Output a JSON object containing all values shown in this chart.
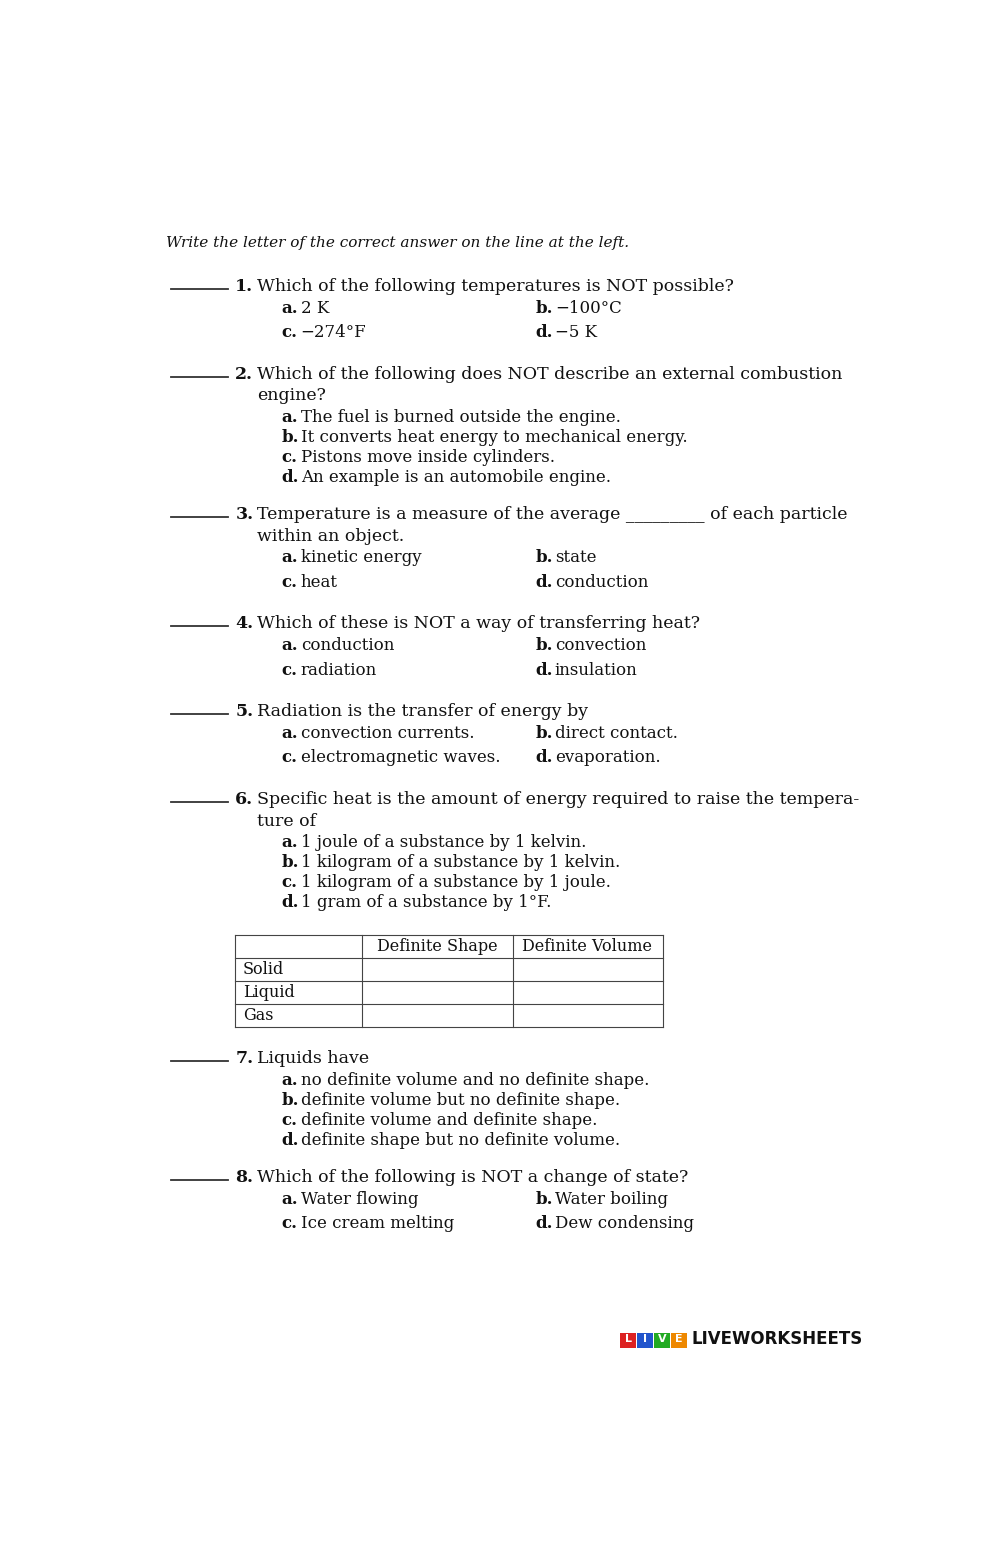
{
  "bg_color": "#ffffff",
  "text_color": "#111111",
  "instruction": "Write the letter of the correct answer on the line at the left.",
  "questions": [
    {
      "num": "1.",
      "q": "Which of the following temperatures is NOT possible?",
      "options_2col": [
        [
          "a.",
          "2 K",
          "b.",
          "−100°C"
        ],
        [
          "c.",
          "−274°F",
          "d.",
          "−5 K"
        ]
      ]
    },
    {
      "num": "2.",
      "q": "Which of the following does NOT describe an external combustion\nengine?",
      "options_1col": [
        [
          "a.",
          "The fuel is burned outside the engine."
        ],
        [
          "b.",
          "It converts heat energy to mechanical energy."
        ],
        [
          "c.",
          "Pistons move inside cylinders."
        ],
        [
          "d.",
          "An example is an automobile engine."
        ]
      ]
    },
    {
      "num": "3.",
      "q": "Temperature is a measure of the average _________ of each particle\nwithin an object.",
      "options_2col": [
        [
          "a.",
          "kinetic energy",
          "b.",
          "state"
        ],
        [
          "c.",
          "heat",
          "d.",
          "conduction"
        ]
      ]
    },
    {
      "num": "4.",
      "q": "Which of these is NOT a way of transferring heat?",
      "options_2col": [
        [
          "a.",
          "conduction",
          "b.",
          "convection"
        ],
        [
          "c.",
          "radiation",
          "d.",
          "insulation"
        ]
      ]
    },
    {
      "num": "5.",
      "q": "Radiation is the transfer of energy by",
      "options_2col": [
        [
          "a.",
          "convection currents.",
          "b.",
          "direct contact."
        ],
        [
          "c.",
          "electromagnetic waves.",
          "d.",
          "evaporation."
        ]
      ]
    },
    {
      "num": "6.",
      "q": "Specific heat is the amount of energy required to raise the tempera-\nture of",
      "options_1col": [
        [
          "a.",
          "1 joule of a substance by 1 kelvin."
        ],
        [
          "b.",
          "1 kilogram of a substance by 1 kelvin."
        ],
        [
          "c.",
          "1 kilogram of a substance by 1 joule."
        ],
        [
          "d.",
          "1 gram of a substance by 1°F."
        ]
      ]
    },
    {
      "num": "7.",
      "q": "Liquids have",
      "options_1col": [
        [
          "a.",
          "no definite volume and no definite shape."
        ],
        [
          "b.",
          "definite volume but no definite shape."
        ],
        [
          "c.",
          "definite volume and definite shape."
        ],
        [
          "d.",
          "definite shape but no definite volume."
        ]
      ]
    },
    {
      "num": "8.",
      "q": "Which of the following is NOT a change of state?",
      "options_2col": [
        [
          "a.",
          "Water flowing",
          "b.",
          "Water boiling"
        ],
        [
          "c.",
          "Ice cream melting",
          "d.",
          "Dew condensing"
        ]
      ]
    }
  ],
  "table": {
    "headers": [
      "",
      "Definite Shape",
      "Definite Volume"
    ],
    "rows": [
      "Solid",
      "Liquid",
      "Gas"
    ]
  },
  "logo_colors": [
    "#dd2222",
    "#2255cc",
    "#22aa22",
    "#ee8800"
  ],
  "logo_letters": [
    "L",
    "I",
    "V",
    "E"
  ]
}
